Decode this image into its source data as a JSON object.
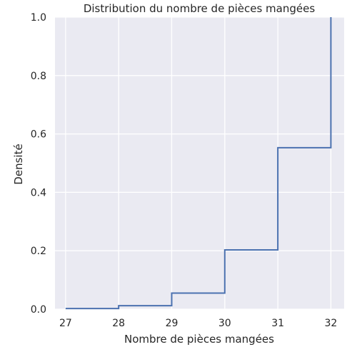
{
  "chart_data": {
    "type": "line",
    "subtype": "ecdf-step",
    "title": "Distribution du nombre de pièces mangées",
    "xlabel": "Nombre de pièces mangées",
    "ylabel": "Densité",
    "xlim": [
      26.8,
      32.25
    ],
    "ylim": [
      0.0,
      1.0
    ],
    "xticks": [
      27,
      28,
      29,
      30,
      31,
      32
    ],
    "yticks": [
      0.0,
      0.2,
      0.4,
      0.6,
      0.8,
      1.0
    ],
    "xtick_labels": [
      "27",
      "28",
      "29",
      "30",
      "31",
      "32"
    ],
    "ytick_labels": [
      "0.0",
      "0.2",
      "0.4",
      "0.6",
      "0.8",
      "1.0"
    ],
    "grid": true,
    "series": [
      {
        "x": [
          27,
          28,
          29,
          30,
          31,
          32
        ],
        "y": [
          0.002,
          0.012,
          0.055,
          0.203,
          0.553,
          1.0
        ],
        "color": "#4c72b0"
      }
    ],
    "colors": {
      "plot_background": "#eaeaf2",
      "grid": "#ffffff",
      "line": "#4c72b0",
      "text": "#262626"
    }
  }
}
